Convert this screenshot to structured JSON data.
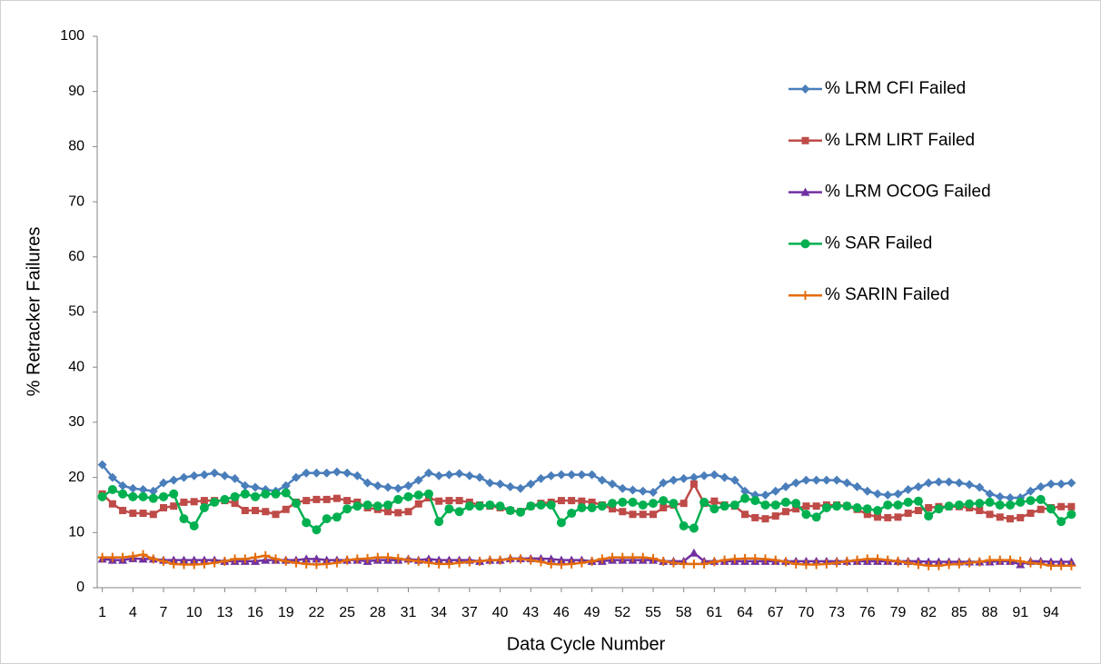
{
  "chart_data": {
    "type": "line",
    "x_label": "Data Cycle Number",
    "y_label": "% Retracker Failures",
    "x": [
      1,
      2,
      3,
      4,
      5,
      6,
      7,
      8,
      9,
      10,
      11,
      12,
      13,
      14,
      15,
      16,
      17,
      18,
      19,
      20,
      21,
      22,
      23,
      24,
      25,
      26,
      27,
      28,
      29,
      30,
      31,
      32,
      33,
      34,
      35,
      36,
      37,
      38,
      39,
      40,
      41,
      42,
      43,
      44,
      45,
      46,
      47,
      48,
      49,
      50,
      51,
      52,
      53,
      54,
      55,
      56,
      57,
      58,
      59,
      60,
      61,
      62,
      63,
      64,
      65,
      66,
      67,
      68,
      69,
      70,
      71,
      72,
      73,
      74,
      75,
      76,
      77,
      78,
      79,
      80,
      81,
      82,
      83,
      84,
      85,
      86,
      87,
      88,
      89,
      90,
      91,
      92,
      93,
      94,
      95,
      96
    ],
    "xlim": [
      0.5,
      96.5
    ],
    "xticks": [
      1,
      4,
      7,
      10,
      13,
      16,
      19,
      22,
      25,
      28,
      31,
      34,
      37,
      40,
      43,
      46,
      49,
      52,
      55,
      58,
      61,
      64,
      67,
      70,
      73,
      76,
      79,
      82,
      85,
      88,
      91,
      94
    ],
    "ylim": [
      0,
      100
    ],
    "yticks": [
      0,
      10,
      20,
      30,
      40,
      50,
      60,
      70,
      80,
      90,
      100
    ],
    "grid": false,
    "legend": "upper right",
    "series": [
      {
        "name": "% LRM CFI Failed",
        "color": "#4a7ebb",
        "marker": "diamond",
        "values": [
          22.3,
          20,
          18.5,
          18,
          17.8,
          17.5,
          19,
          19.5,
          20,
          20.3,
          20.5,
          20.8,
          20.3,
          19.8,
          18.5,
          18.2,
          17.8,
          17.5,
          18.5,
          20,
          20.8,
          20.8,
          20.8,
          21,
          20.8,
          20.3,
          19,
          18.5,
          18.2,
          18,
          18.5,
          19.5,
          20.8,
          20.3,
          20.5,
          20.7,
          20.3,
          20,
          19,
          18.8,
          18.3,
          18,
          18.8,
          19.8,
          20.3,
          20.5,
          20.5,
          20.5,
          20.5,
          19.5,
          18.8,
          18,
          17.7,
          17.5,
          17.3,
          19,
          19.5,
          19.8,
          20,
          20.3,
          20.5,
          20,
          19.5,
          17.5,
          16.8,
          16.8,
          17.5,
          18.3,
          19,
          19.5,
          19.5,
          19.5,
          19.5,
          19,
          18.3,
          17.5,
          17,
          16.8,
          17,
          17.8,
          18.3,
          19,
          19.2,
          19.2,
          19,
          18.7,
          18.2,
          17,
          16.5,
          16.3,
          16.3,
          17.5,
          18.3,
          18.8,
          18.8,
          19
        ]
      },
      {
        "name": "% LRM LIRT Failed",
        "color": "#be4b48",
        "marker": "square",
        "values": [
          17,
          15.2,
          14,
          13.5,
          13.5,
          13.3,
          14.5,
          14.8,
          15.5,
          15.6,
          15.8,
          15.8,
          15.8,
          15.3,
          14,
          14,
          13.8,
          13.3,
          14.2,
          15.5,
          15.8,
          16,
          16,
          16.2,
          15.8,
          15.5,
          14.5,
          14.2,
          13.8,
          13.6,
          13.8,
          15.2,
          16.3,
          15.7,
          15.8,
          15.8,
          15.5,
          15,
          14.8,
          14.5,
          14,
          13.8,
          14.8,
          15.3,
          15.5,
          15.8,
          15.8,
          15.7,
          15.5,
          15,
          14.3,
          13.8,
          13.3,
          13.3,
          13.3,
          14.5,
          15,
          15.3,
          18.8,
          15.3,
          15.7,
          15,
          14.8,
          13.3,
          12.7,
          12.5,
          13,
          13.8,
          14.3,
          14.8,
          14.8,
          15,
          15,
          14.8,
          14.2,
          13.3,
          12.8,
          12.7,
          12.8,
          13.5,
          14,
          14.5,
          14.7,
          14.7,
          14.7,
          14.5,
          14,
          13.3,
          12.8,
          12.5,
          12.7,
          13.5,
          14.2,
          14.5,
          14.7,
          14.7
        ]
      },
      {
        "name": "% LRM OCOG Failed",
        "color": "#7030a0",
        "marker": "triangle",
        "values": [
          5.2,
          5,
          5,
          5.3,
          5.2,
          5.2,
          5,
          5,
          5,
          5,
          5,
          5,
          4.8,
          4.8,
          4.8,
          4.8,
          5,
          5,
          5,
          5,
          5.2,
          5.2,
          5,
          5,
          5,
          5,
          4.8,
          5,
          5,
          5,
          5.2,
          5,
          5.2,
          5,
          5,
          5,
          5,
          4.8,
          5,
          5,
          5.3,
          5.3,
          5.3,
          5.3,
          5.2,
          5,
          5,
          5,
          4.8,
          4.8,
          5,
          5,
          5,
          5,
          5,
          4.8,
          4.8,
          4.8,
          6.3,
          4.8,
          4.8,
          4.8,
          4.8,
          4.8,
          4.8,
          4.8,
          4.8,
          4.8,
          4.8,
          4.8,
          4.8,
          4.8,
          4.8,
          4.8,
          4.8,
          4.8,
          4.8,
          4.8,
          4.8,
          4.8,
          4.8,
          4.7,
          4.7,
          4.7,
          4.7,
          4.7,
          4.7,
          4.7,
          4.8,
          4.8,
          4.2,
          4.8,
          4.8,
          4.7,
          4.7,
          4.7
        ]
      },
      {
        "name": "% SAR Failed",
        "color": "#00b050",
        "marker": "circle",
        "values": [
          16.5,
          17.8,
          17,
          16.5,
          16.5,
          16.2,
          16.5,
          17,
          12.5,
          11.2,
          14.5,
          15.5,
          16,
          16.5,
          17,
          16.5,
          17,
          17,
          17.2,
          15.3,
          11.8,
          10.5,
          12.5,
          12.8,
          14.3,
          14.8,
          15,
          14.8,
          15,
          16,
          16.5,
          16.8,
          17,
          12,
          14.3,
          13.8,
          14.8,
          14.8,
          15,
          14.8,
          14,
          13.7,
          14.8,
          15,
          15,
          11.8,
          13.5,
          14.5,
          14.5,
          14.8,
          15.3,
          15.5,
          15.5,
          15,
          15.3,
          15.8,
          15.3,
          11.2,
          10.8,
          15.5,
          14.3,
          14.8,
          15,
          16.2,
          15.8,
          15,
          15,
          15.5,
          15.3,
          13.3,
          12.8,
          14.5,
          14.8,
          14.8,
          14.5,
          14.3,
          14,
          15,
          15,
          15.5,
          15.7,
          13,
          14.3,
          14.8,
          15,
          15.2,
          15.3,
          15.5,
          15,
          15,
          15.5,
          15.8,
          16,
          14.3,
          12,
          13.3
        ]
      },
      {
        "name": "% SARIN Failed",
        "color": "#e46c0a",
        "marker": "plus",
        "values": [
          5.5,
          5.5,
          5.5,
          5.7,
          6,
          5.2,
          4.8,
          4.3,
          4.2,
          4.2,
          4.3,
          4.5,
          4.8,
          5.2,
          5.2,
          5.5,
          5.8,
          5.2,
          4.8,
          4.5,
          4.3,
          4.2,
          4.3,
          4.5,
          5,
          5.2,
          5.3,
          5.5,
          5.5,
          5.3,
          5,
          4.8,
          4.5,
          4.3,
          4.3,
          4.5,
          4.7,
          4.8,
          5,
          5,
          5.2,
          5.2,
          5,
          4.7,
          4.3,
          4.2,
          4.3,
          4.5,
          4.8,
          5.2,
          5.5,
          5.5,
          5.5,
          5.5,
          5.3,
          4.8,
          4.5,
          4.3,
          4.3,
          4.3,
          4.7,
          5,
          5.2,
          5.3,
          5.3,
          5.2,
          5,
          4.7,
          4.3,
          4.2,
          4.2,
          4.3,
          4.5,
          4.8,
          5,
          5.2,
          5.2,
          5,
          4.8,
          4.5,
          4.2,
          4,
          4,
          4.2,
          4.3,
          4.5,
          4.7,
          5,
          5,
          5,
          4.8,
          4.5,
          4.3,
          4,
          4,
          4
        ]
      }
    ]
  }
}
